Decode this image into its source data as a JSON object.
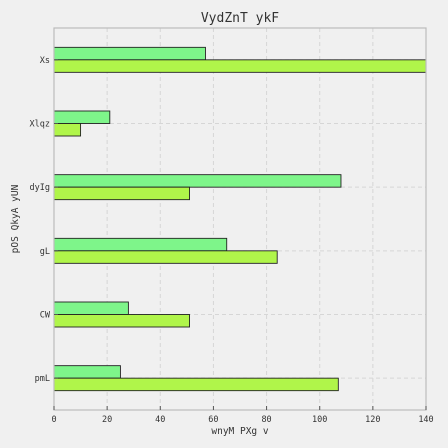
{
  "chart_data": {
    "type": "bar",
    "orientation": "horizontal",
    "title": "VydZnT ykF",
    "xlabel": "wnyM PXg v",
    "ylabel": "pOS QkyA yUN",
    "categories": [
      "Xs",
      "Xlqz",
      "dyIg",
      "gL",
      "CW",
      "pmL"
    ],
    "series": [
      {
        "values": [
          57,
          21,
          108,
          65,
          28,
          25
        ]
      },
      {
        "values": [
          140,
          10,
          51,
          84,
          51,
          107
        ]
      }
    ],
    "xlim": [
      0,
      140
    ],
    "xticks": [
      0,
      20,
      40,
      60,
      80,
      100,
      120,
      140
    ],
    "grid": true,
    "colors": [
      "#7ef58a",
      "#b0f54a"
    ]
  }
}
